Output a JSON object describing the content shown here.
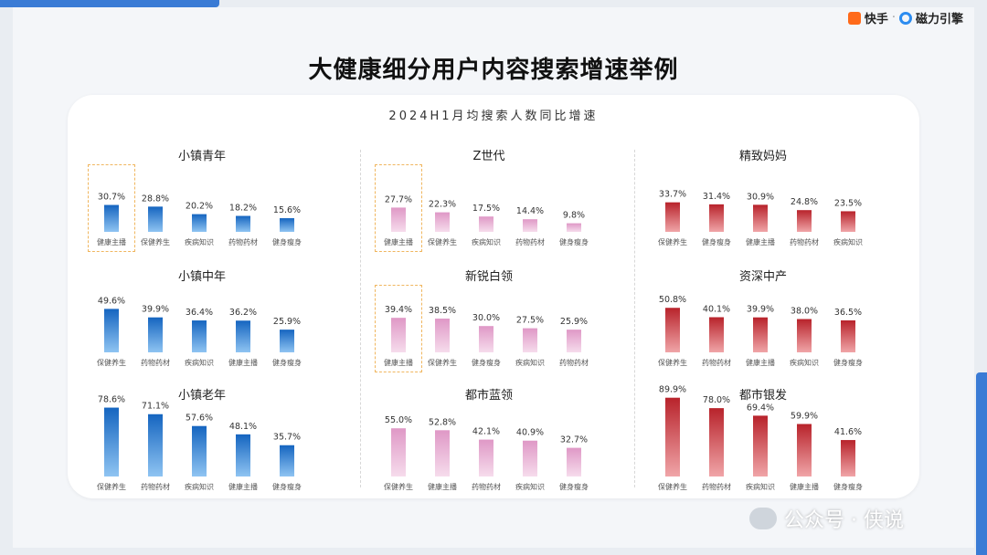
{
  "page": {
    "title": "大健康细分用户内容搜索增速举例"
  },
  "brand": {
    "kuaishou": "快手",
    "separator": "·",
    "cili": "磁力引擎"
  },
  "watermark": {
    "text": "公众号 · 侠说",
    "icon": "wechat-icon"
  },
  "colors": {
    "blue": "#1a6fc4",
    "pink": "#e6a7cf",
    "red": "#c62f36",
    "highlight": "#f0b65f"
  },
  "chart_data": {
    "type": "bar",
    "title": "2024H1月均搜索人数同比增速",
    "ylim": [
      0,
      100
    ],
    "panels": [
      {
        "title": "小镇青年",
        "color": "blue",
        "highlight": 0,
        "categories": [
          "健康主播",
          "保健养生",
          "疾病知识",
          "药物药材",
          "健身瘦身"
        ],
        "values": [
          30.7,
          28.8,
          20.2,
          18.2,
          15.6
        ],
        "labels": [
          "30.7%",
          "28.8%",
          "20.2%",
          "18.2%",
          "15.6%"
        ]
      },
      {
        "title": "Z世代",
        "color": "pink",
        "highlight": 0,
        "categories": [
          "健康主播",
          "保健养生",
          "疾病知识",
          "药物药材",
          "健身瘦身"
        ],
        "values": [
          27.7,
          22.3,
          17.5,
          14.4,
          9.8
        ],
        "labels": [
          "27.7%",
          "22.3%",
          "17.5%",
          "14.4%",
          "9.8%"
        ]
      },
      {
        "title": "精致妈妈",
        "color": "red",
        "highlight": null,
        "categories": [
          "保健养生",
          "健身瘦身",
          "健康主播",
          "药物药材",
          "疾病知识"
        ],
        "values": [
          33.7,
          31.4,
          30.9,
          24.8,
          23.5
        ],
        "labels": [
          "33.7%",
          "31.4%",
          "30.9%",
          "24.8%",
          "23.5%"
        ]
      },
      {
        "title": "小镇中年",
        "color": "blue",
        "highlight": null,
        "categories": [
          "保健养生",
          "药物药材",
          "疾病知识",
          "健康主播",
          "健身瘦身"
        ],
        "values": [
          49.6,
          39.9,
          36.4,
          36.2,
          25.9
        ],
        "labels": [
          "49.6%",
          "39.9%",
          "36.4%",
          "36.2%",
          "25.9%"
        ]
      },
      {
        "title": "新锐白领",
        "color": "pink",
        "highlight": 0,
        "categories": [
          "健康主播",
          "保健养生",
          "健身瘦身",
          "疾病知识",
          "药物药材"
        ],
        "values": [
          39.4,
          38.5,
          30.0,
          27.5,
          25.9
        ],
        "labels": [
          "39.4%",
          "38.5%",
          "30.0%",
          "27.5%",
          "25.9%"
        ]
      },
      {
        "title": "资深中产",
        "color": "red",
        "highlight": null,
        "categories": [
          "保健养生",
          "药物药材",
          "健康主播",
          "疾病知识",
          "健身瘦身"
        ],
        "values": [
          50.8,
          40.1,
          39.9,
          38.0,
          36.5
        ],
        "labels": [
          "50.8%",
          "40.1%",
          "39.9%",
          "38.0%",
          "36.5%"
        ]
      },
      {
        "title": "小镇老年",
        "color": "blue",
        "highlight": null,
        "categories": [
          "保健养生",
          "药物药材",
          "疾病知识",
          "健康主播",
          "健身瘦身"
        ],
        "values": [
          78.6,
          71.1,
          57.6,
          48.1,
          35.7
        ],
        "labels": [
          "78.6%",
          "71.1%",
          "57.6%",
          "48.1%",
          "35.7%"
        ]
      },
      {
        "title": "都市蓝领",
        "color": "pink",
        "highlight": null,
        "categories": [
          "保健养生",
          "健康主播",
          "药物药材",
          "疾病知识",
          "健身瘦身"
        ],
        "values": [
          55.0,
          52.8,
          42.1,
          40.9,
          32.7
        ],
        "labels": [
          "55.0%",
          "52.8%",
          "42.1%",
          "40.9%",
          "32.7%"
        ]
      },
      {
        "title": "都市银发",
        "color": "red",
        "highlight": null,
        "categories": [
          "保健养生",
          "药物药材",
          "疾病知识",
          "健康主播",
          "健身瘦身"
        ],
        "values": [
          89.9,
          78.0,
          69.4,
          59.9,
          41.6
        ],
        "labels": [
          "89.9%",
          "78.0%",
          "69.4%",
          "59.9%",
          "41.6%"
        ]
      }
    ]
  }
}
